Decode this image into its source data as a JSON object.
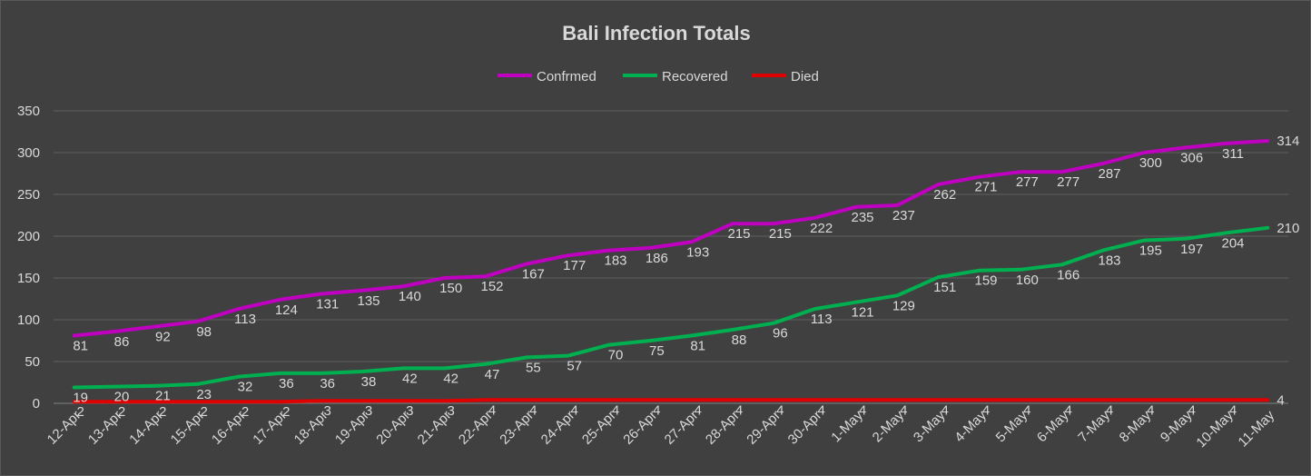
{
  "chart_data": {
    "type": "line",
    "title": "Bali Infection Totals",
    "xlabel": "",
    "ylabel": "",
    "ylim": [
      0,
      350
    ],
    "yticks": [
      0,
      50,
      100,
      150,
      200,
      250,
      300,
      350
    ],
    "grid": true,
    "legend_position": "top",
    "categories": [
      "12-Apr",
      "13-Apr",
      "14-Apr",
      "15-Apr",
      "16-Apr",
      "17-Apr",
      "18-Apr",
      "19-Apr",
      "20-Apr",
      "21-Apr",
      "22-Apr",
      "23-Apr",
      "24-Apr",
      "25-Apr",
      "26-Apr",
      "27-Apr",
      "28-Apr",
      "29-Apr",
      "30-Apr",
      "1-May",
      "2-May",
      "3-May",
      "4-May",
      "5-May",
      "6-May",
      "7-May",
      "8-May",
      "9-May",
      "10-May",
      "11-May"
    ],
    "series": [
      {
        "name": "Confrmed",
        "color": "#c000c0",
        "values": [
          81,
          86,
          92,
          98,
          113,
          124,
          131,
          135,
          140,
          150,
          152,
          167,
          177,
          183,
          186,
          193,
          215,
          215,
          222,
          235,
          237,
          262,
          271,
          277,
          277,
          287,
          300,
          306,
          311,
          314
        ]
      },
      {
        "name": "Recovered",
        "color": "#00b050",
        "values": [
          19,
          20,
          21,
          23,
          32,
          36,
          36,
          38,
          42,
          42,
          47,
          55,
          57,
          70,
          75,
          81,
          88,
          96,
          113,
          121,
          129,
          151,
          159,
          160,
          166,
          183,
          195,
          197,
          204,
          210
        ]
      },
      {
        "name": "Died",
        "color": "#e00000",
        "values": [
          2,
          2,
          2,
          2,
          2,
          2,
          3,
          3,
          3,
          3,
          4,
          4,
          4,
          4,
          4,
          4,
          4,
          4,
          4,
          4,
          4,
          4,
          4,
          4,
          4,
          4,
          4,
          4,
          4,
          4
        ]
      }
    ]
  }
}
